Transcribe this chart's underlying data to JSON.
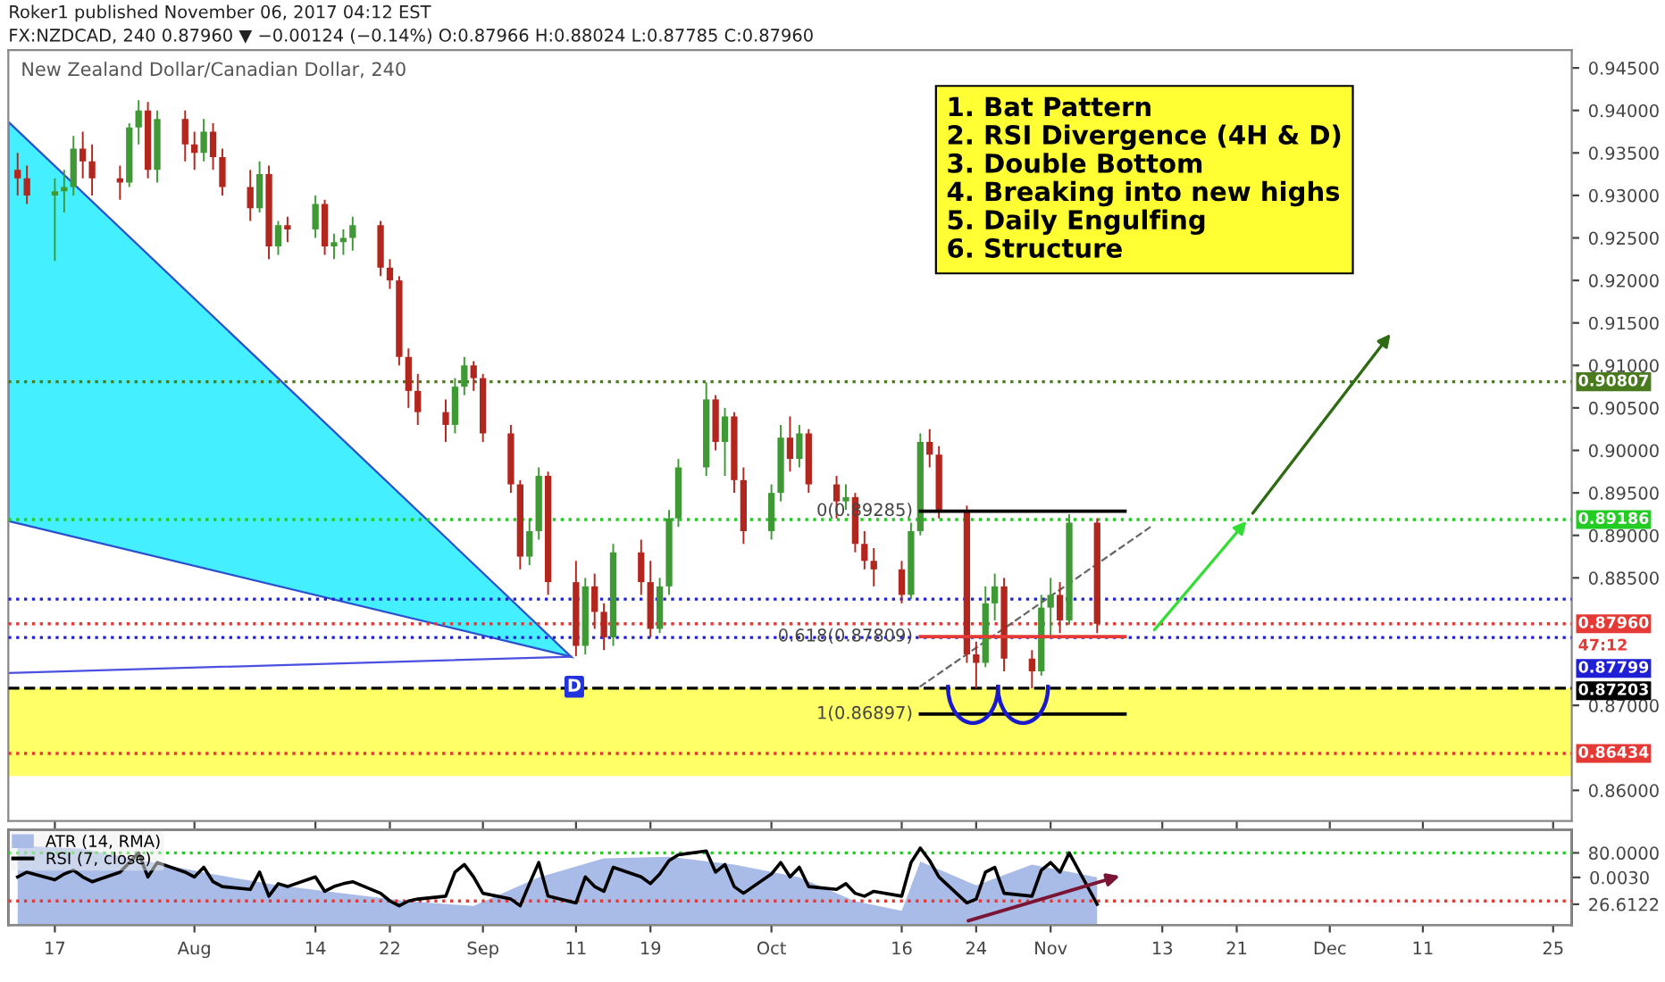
{
  "chart_data": [
    {
      "type": "candlestick",
      "title": "New Zealand Dollar/Canadian Dollar, 240",
      "subtitle": "Roker1 published November 06, 2017 04:12 EST\nFX:NZDCAD, 240 0.87960 ▼ −0.00124 (−0.14%) O:0.87966 H:0.88024 L:0.87785 C:0.87960",
      "x": [
        "2017-07-13",
        "2017-07-14",
        "2017-07-17",
        "2017-07-18",
        "2017-07-19",
        "2017-07-20",
        "2017-07-21",
        "2017-07-24",
        "2017-07-25",
        "2017-07-26",
        "2017-07-27",
        "2017-07-28",
        "2017-07-31",
        "2017-08-01",
        "2017-08-02",
        "2017-08-03",
        "2017-08-04",
        "2017-08-07",
        "2017-08-08",
        "2017-08-09",
        "2017-08-10",
        "2017-08-11",
        "2017-08-14",
        "2017-08-15",
        "2017-08-16",
        "2017-08-17",
        "2017-08-18",
        "2017-08-21",
        "2017-08-22",
        "2017-08-23",
        "2017-08-24",
        "2017-08-25",
        "2017-08-28",
        "2017-08-29",
        "2017-08-30",
        "2017-08-31",
        "2017-09-01",
        "2017-09-04",
        "2017-09-05",
        "2017-09-06",
        "2017-09-07",
        "2017-09-08",
        "2017-09-11",
        "2017-09-12",
        "2017-09-13",
        "2017-09-14",
        "2017-09-15",
        "2017-09-18",
        "2017-09-19",
        "2017-09-20",
        "2017-09-21",
        "2017-09-22",
        "2017-09-25",
        "2017-09-26",
        "2017-09-27",
        "2017-09-28",
        "2017-09-29",
        "2017-10-02",
        "2017-10-03",
        "2017-10-04",
        "2017-10-05",
        "2017-10-06",
        "2017-10-09",
        "2017-10-10",
        "2017-10-11",
        "2017-10-12",
        "2017-10-13",
        "2017-10-16",
        "2017-10-17",
        "2017-10-18",
        "2017-10-19",
        "2017-10-20",
        "2017-10-23",
        "2017-10-24",
        "2017-10-25",
        "2017-10-26",
        "2017-10-27",
        "2017-10-30",
        "2017-10-31",
        "2017-11-01",
        "2017-11-02",
        "2017-11-03",
        "2017-11-06"
      ],
      "ohlc": [
        [
          0.933,
          0.935,
          0.93,
          0.932
        ],
        [
          0.932,
          0.9335,
          0.929,
          0.93
        ],
        [
          0.93,
          0.932,
          0.9223,
          0.9305
        ],
        [
          0.9305,
          0.933,
          0.928,
          0.931
        ],
        [
          0.931,
          0.937,
          0.93,
          0.9355
        ],
        [
          0.9355,
          0.9375,
          0.932,
          0.934
        ],
        [
          0.934,
          0.936,
          0.93,
          0.932
        ],
        [
          0.932,
          0.9335,
          0.9295,
          0.9315
        ],
        [
          0.9315,
          0.9385,
          0.931,
          0.938
        ],
        [
          0.938,
          0.9412,
          0.936,
          0.94
        ],
        [
          0.94,
          0.941,
          0.932,
          0.933
        ],
        [
          0.933,
          0.94,
          0.9315,
          0.939
        ],
        [
          0.939,
          0.94,
          0.934,
          0.936
        ],
        [
          0.936,
          0.9375,
          0.933,
          0.935
        ],
        [
          0.935,
          0.939,
          0.934,
          0.9375
        ],
        [
          0.9375,
          0.9385,
          0.933,
          0.9345
        ],
        [
          0.9345,
          0.9355,
          0.93,
          0.931
        ],
        [
          0.931,
          0.933,
          0.927,
          0.9285
        ],
        [
          0.9285,
          0.934,
          0.928,
          0.9325
        ],
        [
          0.9325,
          0.9335,
          0.9225,
          0.924
        ],
        [
          0.924,
          0.927,
          0.923,
          0.9265
        ],
        [
          0.9265,
          0.9275,
          0.9245,
          0.926
        ],
        [
          0.926,
          0.93,
          0.925,
          0.929
        ],
        [
          0.929,
          0.9295,
          0.923,
          0.924
        ],
        [
          0.924,
          0.9255,
          0.9225,
          0.9245
        ],
        [
          0.9245,
          0.926,
          0.923,
          0.925
        ],
        [
          0.925,
          0.9275,
          0.9235,
          0.9265
        ],
        [
          0.9265,
          0.927,
          0.9205,
          0.9215
        ],
        [
          0.9215,
          0.9225,
          0.919,
          0.92
        ],
        [
          0.92,
          0.9205,
          0.91,
          0.911
        ],
        [
          0.911,
          0.912,
          0.905,
          0.907
        ],
        [
          0.907,
          0.909,
          0.903,
          0.9045
        ],
        [
          0.9045,
          0.906,
          0.901,
          0.903
        ],
        [
          0.903,
          0.9085,
          0.902,
          0.9075
        ],
        [
          0.9075,
          0.911,
          0.9065,
          0.91
        ],
        [
          0.91,
          0.9105,
          0.907,
          0.9085
        ],
        [
          0.9085,
          0.909,
          0.901,
          0.902
        ],
        [
          0.902,
          0.903,
          0.895,
          0.896
        ],
        [
          0.896,
          0.8965,
          0.886,
          0.8875
        ],
        [
          0.8875,
          0.892,
          0.8865,
          0.8905
        ],
        [
          0.8905,
          0.898,
          0.8895,
          0.897
        ],
        [
          0.897,
          0.8975,
          0.883,
          0.8845
        ],
        [
          0.8845,
          0.887,
          0.8758,
          0.877
        ],
        [
          0.877,
          0.885,
          0.876,
          0.884
        ],
        [
          0.884,
          0.8855,
          0.879,
          0.881
        ],
        [
          0.881,
          0.882,
          0.8765,
          0.878
        ],
        [
          0.878,
          0.889,
          0.877,
          0.888
        ],
        [
          0.888,
          0.8895,
          0.883,
          0.8845
        ],
        [
          0.8845,
          0.887,
          0.878,
          0.879
        ],
        [
          0.879,
          0.885,
          0.8785,
          0.884
        ],
        [
          0.884,
          0.893,
          0.883,
          0.892
        ],
        [
          0.892,
          0.899,
          0.891,
          0.898
        ],
        [
          0.898,
          0.908,
          0.897,
          0.906
        ],
        [
          0.906,
          0.9065,
          0.9,
          0.901
        ],
        [
          0.901,
          0.905,
          0.897,
          0.904
        ],
        [
          0.904,
          0.9045,
          0.895,
          0.8965
        ],
        [
          0.8965,
          0.898,
          0.889,
          0.8905
        ],
        [
          0.8905,
          0.896,
          0.8895,
          0.895
        ],
        [
          0.895,
          0.903,
          0.894,
          0.9015
        ],
        [
          0.9015,
          0.904,
          0.8975,
          0.899
        ],
        [
          0.899,
          0.903,
          0.898,
          0.902
        ],
        [
          0.902,
          0.9025,
          0.895,
          0.896
        ],
        [
          0.896,
          0.897,
          0.892,
          0.894
        ],
        [
          0.894,
          0.896,
          0.893,
          0.8945
        ],
        [
          0.8945,
          0.895,
          0.888,
          0.889
        ],
        [
          0.889,
          0.8905,
          0.886,
          0.887
        ],
        [
          0.887,
          0.8885,
          0.884,
          0.886
        ],
        [
          0.886,
          0.887,
          0.882,
          0.883
        ],
        [
          0.883,
          0.8915,
          0.8825,
          0.8905
        ],
        [
          0.8905,
          0.902,
          0.89,
          0.901
        ],
        [
          0.901,
          0.9025,
          0.898,
          0.8995
        ],
        [
          0.8995,
          0.9005,
          0.892,
          0.893
        ],
        [
          0.893,
          0.8935,
          0.875,
          0.876
        ],
        [
          0.876,
          0.8775,
          0.872,
          0.875
        ],
        [
          0.875,
          0.884,
          0.8745,
          0.882
        ],
        [
          0.882,
          0.8855,
          0.88,
          0.884
        ],
        [
          0.884,
          0.885,
          0.874,
          0.8755
        ],
        [
          0.8755,
          0.8765,
          0.872,
          0.874
        ],
        [
          0.874,
          0.883,
          0.8735,
          0.8815
        ],
        [
          0.8815,
          0.885,
          0.878,
          0.883
        ],
        [
          0.883,
          0.8845,
          0.8785,
          0.88
        ],
        [
          0.88,
          0.8925,
          0.8795,
          0.8915
        ],
        [
          0.8915,
          0.892,
          0.8785,
          0.8796
        ]
      ],
      "colors": [
        "#b3261e",
        "#b3261e",
        "#3f9a35",
        "#3f9a35",
        "#3f9a35",
        "#b3261e",
        "#b3261e",
        "#b3261e",
        "#3f9a35",
        "#3f9a35",
        "#b3261e",
        "#3f9a35",
        "#b3261e",
        "#b3261e",
        "#3f9a35",
        "#b3261e",
        "#b3261e",
        "#b3261e",
        "#3f9a35",
        "#b3261e",
        "#3f9a35",
        "#b3261e",
        "#3f9a35",
        "#b3261e",
        "#3f9a35",
        "#3f9a35",
        "#3f9a35",
        "#b3261e",
        "#b3261e",
        "#b3261e",
        "#b3261e",
        "#b3261e",
        "#b3261e",
        "#3f9a35",
        "#3f9a35",
        "#b3261e",
        "#b3261e",
        "#b3261e",
        "#b3261e",
        "#3f9a35",
        "#3f9a35",
        "#b3261e",
        "#b3261e",
        "#3f9a35",
        "#b3261e",
        "#b3261e",
        "#3f9a35",
        "#b3261e",
        "#b3261e",
        "#3f9a35",
        "#3f9a35",
        "#3f9a35",
        "#3f9a35",
        "#b3261e",
        "#3f9a35",
        "#b3261e",
        "#b3261e",
        "#3f9a35",
        "#3f9a35",
        "#b3261e",
        "#3f9a35",
        "#b3261e",
        "#b3261e",
        "#3f9a35",
        "#b3261e",
        "#b3261e",
        "#b3261e",
        "#b3261e",
        "#3f9a35",
        "#3f9a35",
        "#b3261e",
        "#b3261e",
        "#b3261e",
        "#b3261e",
        "#3f9a35",
        "#3f9a35",
        "#b3261e",
        "#b3261e",
        "#3f9a35",
        "#3f9a35",
        "#b3261e",
        "#3f9a35",
        "#b3261e"
      ],
      "series": [
        {
          "type": "line",
          "color": "#000000",
          "x": [
            "2017-10-18",
            "2017-11-09"
          ],
          "values": [
            0.89285,
            0.89285
          ]
        },
        {
          "type": "line",
          "color": "#e53935",
          "x": [
            "2017-10-18",
            "2017-11-09"
          ],
          "values": [
            0.87809,
            0.87809
          ]
        },
        {
          "type": "line",
          "color": "#000000",
          "x": [
            "2017-10-18",
            "2017-11-09"
          ],
          "values": [
            0.86897,
            0.86897
          ]
        }
      ],
      "xlim": [
        "2017-07-12",
        "2017-12-27"
      ],
      "xticks": [
        {
          "value": "2017-07-17",
          "label": null
        },
        {
          "value": "2017-08-01",
          "label": null
        },
        {
          "value": "2017-08-14",
          "label": null
        },
        {
          "value": "2017-08-22",
          "label": null
        },
        {
          "value": "2017-09-01",
          "label": null
        },
        {
          "value": "2017-09-11",
          "label": null
        },
        {
          "value": "2017-09-19",
          "label": null
        },
        {
          "value": "2017-10-02",
          "label": null
        },
        {
          "value": "2017-10-16",
          "label": null
        },
        {
          "value": "2017-10-24",
          "label": null
        },
        {
          "value": "2017-11-01",
          "label": null
        },
        {
          "value": "2017-11-13",
          "label": null
        },
        {
          "value": "2017-11-21",
          "label": null
        },
        {
          "value": "2017-12-01",
          "label": null
        },
        {
          "value": "2017-12-11",
          "label": null
        },
        {
          "value": "2017-12-25",
          "label": null
        }
      ],
      "ylim": [
        0.8564,
        0.9471
      ],
      "yticks": [
        {
          "value": 0.86,
          "label": "0.86000"
        },
        {
          "value": 0.87,
          "label": "0.87000"
        },
        {
          "value": 0.885,
          "label": "0.88500"
        },
        {
          "value": 0.89,
          "label": "0.89000"
        },
        {
          "value": 0.895,
          "label": "0.89500"
        },
        {
          "value": 0.9,
          "label": "0.90000"
        },
        {
          "value": 0.905,
          "label": "0.90500"
        },
        {
          "value": 0.91,
          "label": "0.91000"
        },
        {
          "value": 0.915,
          "label": "0.91500"
        },
        {
          "value": 0.92,
          "label": "0.92000"
        },
        {
          "value": 0.925,
          "label": "0.92500"
        },
        {
          "value": 0.93,
          "label": "0.93000"
        },
        {
          "value": 0.935,
          "label": "0.93500"
        },
        {
          "value": 0.94,
          "label": "0.94000"
        },
        {
          "value": 0.945,
          "label": "0.94500"
        }
      ],
      "tick_labels": "y",
      "ref_lines": [
        {
          "axis": "y",
          "value": 0.90807,
          "label": "0.90807",
          "color": "#4a7a1e",
          "line_style": "dotted"
        },
        {
          "axis": "y",
          "value": 0.89186,
          "label": "0.89186",
          "color": "#22cc22",
          "line_style": "dotted"
        },
        {
          "axis": "y",
          "value": 0.8796,
          "label": "0.87960",
          "color": "#e53935",
          "line_style": "dotted"
        },
        {
          "axis": "y",
          "value": 0.87799,
          "label": "0.87799",
          "color": "#1f1fd6",
          "line_style": "dotted"
        },
        {
          "axis": "y",
          "value": 0.87203,
          "label": "0.87203",
          "color": "#000000",
          "line_style": "dashed"
        },
        {
          "axis": "y",
          "value": 0.86434,
          "label": "0.86434",
          "color": "#e53935",
          "line_style": "dotted"
        },
        {
          "axis": "y",
          "value": 0.8825,
          "label": null,
          "color": "#1f1fd6",
          "line_style": "dotted"
        }
      ],
      "bands": [
        {
          "axis": "y",
          "from": 0.8617,
          "to": 0.87203,
          "label": null,
          "color": "#ffff66"
        }
      ],
      "annotations": [
        "1. Bat Pattern\n2. RSI Divergence (4H & D)\n3. Double Bottom\n4. Breaking into new highs\n5. Daily Engulfing\n6. Structure",
        "47:12",
        "D",
        {
          "text": "0(0.89285)",
          "x": "2017-10-18",
          "y": 0.89285
        },
        {
          "text": "0.618(0.87809)",
          "x": "2017-10-18",
          "y": 0.87809
        },
        {
          "text": "1(0.86897)",
          "x": "2017-10-18",
          "y": 0.86897
        }
      ]
    },
    {
      "type": "line",
      "x": [
        "2017-07-13",
        "2017-07-14",
        "2017-07-17",
        "2017-07-18",
        "2017-07-19",
        "2017-07-20",
        "2017-07-21",
        "2017-07-24",
        "2017-07-25",
        "2017-07-26",
        "2017-07-27",
        "2017-07-28",
        "2017-07-31",
        "2017-08-01",
        "2017-08-02",
        "2017-08-03",
        "2017-08-04",
        "2017-08-07",
        "2017-08-08",
        "2017-08-09",
        "2017-08-10",
        "2017-08-11",
        "2017-08-14",
        "2017-08-15",
        "2017-08-16",
        "2017-08-17",
        "2017-08-18",
        "2017-08-21",
        "2017-08-22",
        "2017-08-23",
        "2017-08-24",
        "2017-08-25",
        "2017-08-28",
        "2017-08-29",
        "2017-08-30",
        "2017-08-31",
        "2017-09-01",
        "2017-09-04",
        "2017-09-05",
        "2017-09-06",
        "2017-09-07",
        "2017-09-08",
        "2017-09-11",
        "2017-09-12",
        "2017-09-13",
        "2017-09-14",
        "2017-09-15",
        "2017-09-18",
        "2017-09-19",
        "2017-09-20",
        "2017-09-21",
        "2017-09-22",
        "2017-09-25",
        "2017-09-26",
        "2017-09-27",
        "2017-09-28",
        "2017-09-29",
        "2017-10-02",
        "2017-10-03",
        "2017-10-04",
        "2017-10-05",
        "2017-10-06",
        "2017-10-09",
        "2017-10-10",
        "2017-10-11",
        "2017-10-12",
        "2017-10-13",
        "2017-10-16",
        "2017-10-17",
        "2017-10-18",
        "2017-10-19",
        "2017-10-20",
        "2017-10-23",
        "2017-10-24",
        "2017-10-25",
        "2017-10-26",
        "2017-10-27",
        "2017-10-30",
        "2017-10-31",
        "2017-11-01",
        "2017-11-02",
        "2017-11-03",
        "2017-11-06"
      ],
      "series": [
        {
          "name": "ATR (14, RMA)",
          "type": "area",
          "axis": "y2",
          "color": "#a9bce8",
          "x": [
            "2017-07-13",
            "2017-07-20",
            "2017-07-27",
            "2017-08-03",
            "2017-08-10",
            "2017-08-17",
            "2017-08-24",
            "2017-08-31",
            "2017-09-07",
            "2017-09-14",
            "2017-09-21",
            "2017-09-28",
            "2017-10-05",
            "2017-10-11",
            "2017-10-16",
            "2017-10-18",
            "2017-10-24",
            "2017-10-30",
            "2017-11-06"
          ],
          "values": [
            0.005,
            0.0048,
            0.004,
            0.0032,
            0.0025,
            0.002,
            0.0015,
            0.0012,
            0.003,
            0.0042,
            0.0043,
            0.0038,
            0.003,
            0.0015,
            0.0009,
            0.004,
            0.0025,
            0.0038,
            0.003
          ]
        },
        {
          "name": "RSI (7, close)",
          "color": "#000000",
          "values": [
            55,
            60,
            52,
            58,
            62,
            55,
            50,
            60,
            70,
            80,
            55,
            70,
            60,
            55,
            65,
            50,
            45,
            42,
            60,
            35,
            48,
            45,
            55,
            40,
            45,
            48,
            50,
            38,
            30,
            25,
            30,
            32,
            35,
            60,
            68,
            55,
            38,
            32,
            25,
            48,
            70,
            35,
            28,
            55,
            45,
            40,
            65,
            55,
            48,
            58,
            72,
            78,
            82,
            60,
            68,
            45,
            38,
            58,
            70,
            55,
            65,
            45,
            42,
            48,
            38,
            35,
            40,
            35,
            70,
            85,
            72,
            55,
            28,
            32,
            60,
            65,
            38,
            35,
            62,
            70,
            60,
            80,
            26.6122
          ]
        }
      ],
      "xlim": [
        "2017-07-12",
        "2017-12-27"
      ],
      "xticks": [
        {
          "value": "2017-07-17",
          "label": "17"
        },
        {
          "value": "2017-08-01",
          "label": "Aug"
        },
        {
          "value": "2017-08-14",
          "label": "14"
        },
        {
          "value": "2017-08-22",
          "label": "22"
        },
        {
          "value": "2017-09-01",
          "label": "Sep"
        },
        {
          "value": "2017-09-11",
          "label": "11"
        },
        {
          "value": "2017-09-19",
          "label": "19"
        },
        {
          "value": "2017-10-02",
          "label": "Oct"
        },
        {
          "value": "2017-10-16",
          "label": "16"
        },
        {
          "value": "2017-10-24",
          "label": "24"
        },
        {
          "value": "2017-11-01",
          "label": "Nov"
        },
        {
          "value": "2017-11-13",
          "label": "13"
        },
        {
          "value": "2017-11-21",
          "label": "21"
        },
        {
          "value": "2017-12-01",
          "label": "Dec"
        },
        {
          "value": "2017-12-11",
          "label": "11"
        },
        {
          "value": "2017-12-25",
          "label": "25"
        }
      ],
      "ylim": [
        5,
        104
      ],
      "yticks": [
        {
          "value": 26.6122,
          "label": "26.6122"
        },
        {
          "value": 80,
          "label": "80.0000"
        }
      ],
      "y2lim": [
        0,
        0.006
      ],
      "y2ticks": [
        {
          "value": 0.003,
          "label": "0.0030"
        }
      ],
      "ref_lines": [
        {
          "axis": "y",
          "value": 80,
          "label": null,
          "color": "#22cc22",
          "line_style": "dotted"
        },
        {
          "axis": "y",
          "value": 30,
          "label": null,
          "color": "#e53935",
          "line_style": "dotted"
        }
      ],
      "legend": "top left"
    }
  ]
}
